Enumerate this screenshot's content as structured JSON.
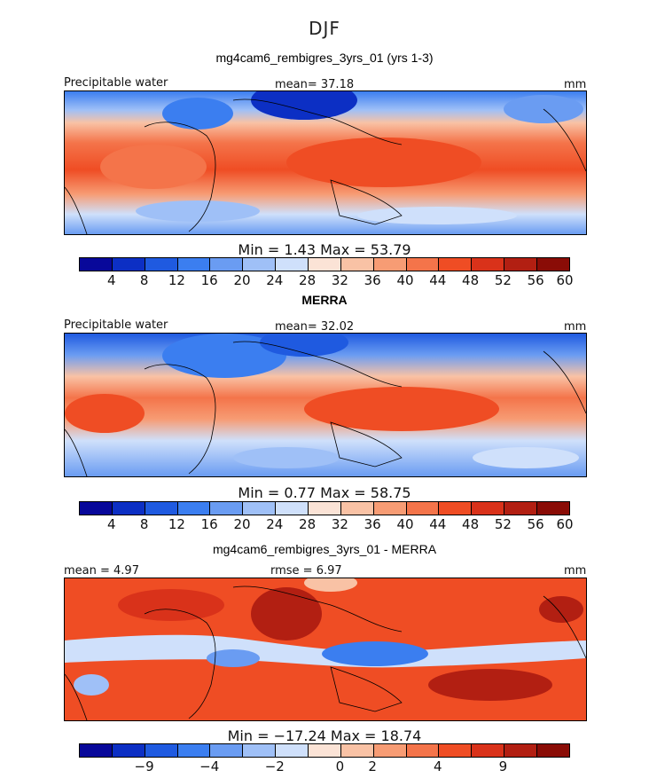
{
  "figure": {
    "title": "DJF"
  },
  "panels": [
    {
      "subtitle": "mg4cam6_rembigres_3yrs_01 (yrs 1-3)",
      "left_label": "Precipitable water",
      "center_label": "mean=  37.18",
      "right_label": "mm",
      "stats": "Min =    1.43  Max =   53.79",
      "cbar_ticks": [
        "4",
        "8",
        "12",
        "16",
        "20",
        "24",
        "28",
        "32",
        "36",
        "40",
        "44",
        "48",
        "52",
        "56",
        "60"
      ],
      "cbar_colors": [
        "#08089a",
        "#0c2fc4",
        "#1f5ae0",
        "#3b7ef0",
        "#6a9cf2",
        "#9fc0f7",
        "#cfe0fb",
        "#fbe3d6",
        "#f9c2a5",
        "#f79c74",
        "#f4744a",
        "#ef4d24",
        "#d9321a",
        "#b21f12",
        "#8a0c06"
      ]
    },
    {
      "subtitle": "MERRA",
      "left_label": "Precipitable water",
      "center_label": "mean=  32.02",
      "right_label": "mm",
      "stats": "Min =    0.77  Max =   58.75",
      "cbar_ticks": [
        "4",
        "8",
        "12",
        "16",
        "20",
        "24",
        "28",
        "32",
        "36",
        "40",
        "44",
        "48",
        "52",
        "56",
        "60"
      ],
      "cbar_colors": [
        "#08089a",
        "#0c2fc4",
        "#1f5ae0",
        "#3b7ef0",
        "#6a9cf2",
        "#9fc0f7",
        "#cfe0fb",
        "#fbe3d6",
        "#f9c2a5",
        "#f79c74",
        "#f4744a",
        "#ef4d24",
        "#d9321a",
        "#b21f12",
        "#8a0c06"
      ]
    },
    {
      "subtitle": "mg4cam6_rembigres_3yrs_01 - MERRA",
      "left_label": "mean =     4.97",
      "center_label": "rmse =    6.97",
      "right_label": "mm",
      "stats": "Min = −17.24  Max =   18.74",
      "cbar_ticks": [
        "−9",
        "−4",
        "−2",
        "0",
        "2",
        "4",
        "9"
      ],
      "cbar_colors": [
        "#08089a",
        "#0c2fc4",
        "#1f5ae0",
        "#3b7ef0",
        "#6a9cf2",
        "#9fc0f7",
        "#cfe0fb",
        "#fbe3d6",
        "#f9c2a5",
        "#f79c74",
        "#f4744a",
        "#ef4d24",
        "#d9321a",
        "#b21f12",
        "#8a0c06"
      ]
    }
  ],
  "chart_data": [
    {
      "type": "heatmap",
      "title": "mg4cam6_rembigres_3yrs_01 (yrs 1-3)",
      "variable": "Precipitable water",
      "units": "mm",
      "mean": 37.18,
      "min": 1.43,
      "max": 53.79,
      "levels": [
        4,
        8,
        12,
        16,
        20,
        24,
        28,
        32,
        36,
        40,
        44,
        48,
        52,
        56,
        60
      ]
    },
    {
      "type": "heatmap",
      "title": "MERRA",
      "variable": "Precipitable water",
      "units": "mm",
      "mean": 32.02,
      "min": 0.77,
      "max": 58.75,
      "levels": [
        4,
        8,
        12,
        16,
        20,
        24,
        28,
        32,
        36,
        40,
        44,
        48,
        52,
        56,
        60
      ]
    },
    {
      "type": "heatmap",
      "title": "mg4cam6_rembigres_3yrs_01 - MERRA",
      "units": "mm",
      "mean": 4.97,
      "rmse": 6.97,
      "min": -17.24,
      "max": 18.74,
      "levels": [
        -9,
        -4,
        -2,
        0,
        2,
        4,
        9
      ]
    }
  ]
}
